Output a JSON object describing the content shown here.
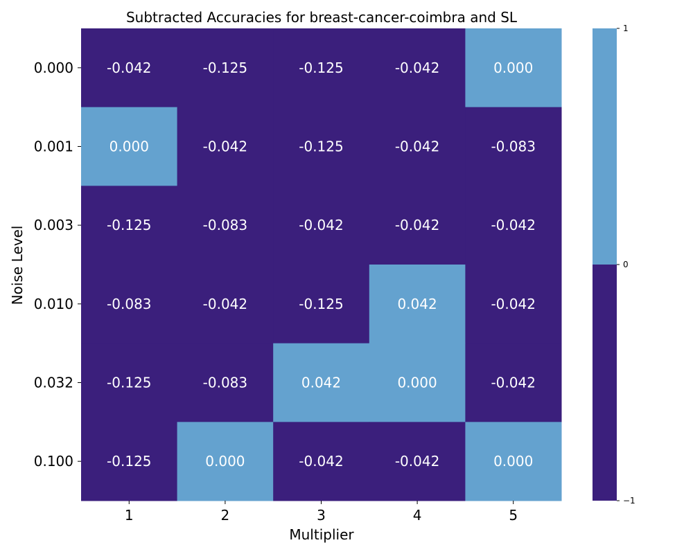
{
  "chart_data": {
    "type": "heatmap",
    "title": "Subtracted Accuracies for breast-cancer-coimbra and SL",
    "xlabel": "Multiplier",
    "ylabel": "Noise Level",
    "x_categories": [
      "1",
      "2",
      "3",
      "4",
      "5"
    ],
    "y_categories": [
      "0.000",
      "0.001",
      "0.003",
      "0.010",
      "0.032",
      "0.100"
    ],
    "values": [
      [
        -0.042,
        -0.125,
        -0.125,
        -0.042,
        0.0
      ],
      [
        0.0,
        -0.042,
        -0.125,
        -0.042,
        -0.083
      ],
      [
        -0.125,
        -0.083,
        -0.042,
        -0.042,
        -0.042
      ],
      [
        -0.083,
        -0.042,
        -0.125,
        0.042,
        -0.042
      ],
      [
        -0.125,
        -0.083,
        0.042,
        0.0,
        -0.042
      ],
      [
        -0.125,
        0.0,
        -0.042,
        -0.042,
        0.0
      ]
    ],
    "value_labels": [
      [
        "-0.042",
        "-0.125",
        "-0.125",
        "-0.042",
        "0.000"
      ],
      [
        "0.000",
        "-0.042",
        "-0.125",
        "-0.042",
        "-0.083"
      ],
      [
        "-0.125",
        "-0.083",
        "-0.042",
        "-0.042",
        "-0.042"
      ],
      [
        "-0.083",
        "-0.042",
        "-0.125",
        "0.042",
        "-0.042"
      ],
      [
        "-0.125",
        "-0.083",
        "0.042",
        "0.000",
        "-0.042"
      ],
      [
        "-0.125",
        "0.000",
        "-0.042",
        "-0.042",
        "0.000"
      ]
    ],
    "colorbar": {
      "range": [
        -1,
        1
      ],
      "ticks": [
        1,
        0,
        -1
      ],
      "tick_labels": [
        "1",
        "0",
        "−1"
      ],
      "threshold": 0,
      "color_negative": "#3b1f7c",
      "color_nonnegative": "#64a2cf"
    },
    "grid": false
  }
}
